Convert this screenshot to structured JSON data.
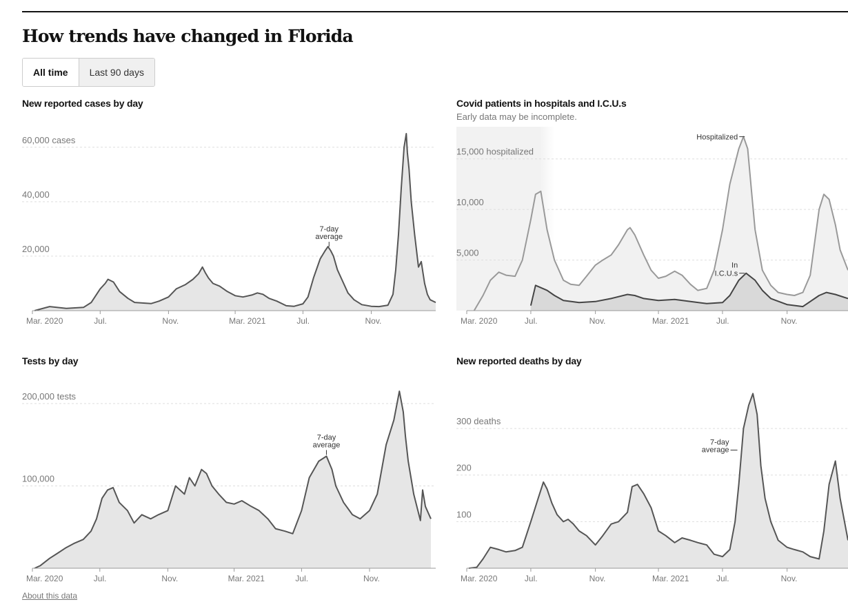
{
  "page": {
    "title": "How trends have changed in Florida",
    "toggle": {
      "all_time": "All time",
      "last_90": "Last 90 days"
    },
    "about_link": "About this data"
  },
  "chart_data": [
    {
      "id": "cases",
      "type": "area",
      "title": "New reported cases by day",
      "ylim": [
        0,
        65000
      ],
      "yticks": [
        {
          "value": 20000,
          "label": "20,000"
        },
        {
          "value": 40000,
          "label": "40,000"
        },
        {
          "value": 60000,
          "label": "60,000 cases"
        }
      ],
      "xlim": [
        "2020-03-01",
        "2022-02-25"
      ],
      "xticks": [
        {
          "date": "2020-03-01",
          "label": "Mar. 2020"
        },
        {
          "date": "2020-07-01",
          "label": "Jul."
        },
        {
          "date": "2020-11-01",
          "label": "Nov."
        },
        {
          "date": "2021-03-01",
          "label": "Mar. 2021"
        },
        {
          "date": "2021-07-01",
          "label": "Jul."
        },
        {
          "date": "2021-11-01",
          "label": "Nov."
        }
      ],
      "annotation": {
        "lines": [
          "7-day",
          "average"
        ],
        "date": "2021-08-17",
        "value": 23000
      },
      "series": [
        {
          "x": [
            "2020-03-05",
            "2020-04-01",
            "2020-05-01",
            "2020-06-01",
            "2020-06-15",
            "2020-07-01",
            "2020-07-10",
            "2020-07-15",
            "2020-07-25",
            "2020-08-05",
            "2020-08-20",
            "2020-09-01",
            "2020-09-15",
            "2020-10-01",
            "2020-10-15",
            "2020-11-01",
            "2020-11-15",
            "2020-12-01",
            "2020-12-15",
            "2020-12-25",
            "2021-01-01",
            "2021-01-06",
            "2021-01-12",
            "2021-01-20",
            "2021-02-01",
            "2021-02-15",
            "2021-03-01",
            "2021-03-15",
            "2021-04-01",
            "2021-04-10",
            "2021-04-20",
            "2021-05-01",
            "2021-05-15",
            "2021-06-01",
            "2021-06-15",
            "2021-07-01",
            "2021-07-10",
            "2021-07-20",
            "2021-08-01",
            "2021-08-10",
            "2021-08-15",
            "2021-08-20",
            "2021-08-25",
            "2021-09-01",
            "2021-09-10",
            "2021-09-20",
            "2021-10-01",
            "2021-10-15",
            "2021-11-01",
            "2021-11-15",
            "2021-12-01",
            "2021-12-10",
            "2021-12-15",
            "2021-12-20",
            "2021-12-25",
            "2021-12-30",
            "2022-01-03",
            "2022-01-05",
            "2022-01-08",
            "2022-01-12",
            "2022-01-18",
            "2022-01-25",
            "2022-01-30",
            "2022-02-05",
            "2022-02-10",
            "2022-02-15",
            "2022-02-25"
          ],
          "values": [
            0,
            1500,
            800,
            1200,
            3000,
            8000,
            10000,
            11500,
            10500,
            7000,
            4500,
            3000,
            2800,
            2600,
            3500,
            5000,
            8000,
            9500,
            11500,
            13500,
            16000,
            14000,
            12000,
            10000,
            9000,
            7000,
            5500,
            5000,
            5800,
            6500,
            6000,
            4500,
            3500,
            1800,
            1600,
            2500,
            5000,
            12000,
            19000,
            22000,
            23500,
            22000,
            20000,
            15000,
            11000,
            6500,
            4000,
            2200,
            1600,
            1500,
            2000,
            6000,
            15000,
            28000,
            45000,
            60000,
            65000,
            58000,
            52000,
            40000,
            28000,
            16000,
            18000,
            10000,
            6000,
            4000,
            3000
          ]
        }
      ]
    },
    {
      "id": "hospital",
      "type": "area",
      "title": "Covid patients in hospitals and I.C.U.s",
      "subtitle": "Early data may be incomplete.",
      "ylim": [
        0,
        17500
      ],
      "yticks": [
        {
          "value": 5000,
          "label": "5,000"
        },
        {
          "value": 10000,
          "label": "10,000"
        },
        {
          "value": 15000,
          "label": "15,000 hospitalized"
        }
      ],
      "xlim": [
        "2020-03-01",
        "2022-02-25"
      ],
      "xticks": [
        {
          "date": "2020-03-01",
          "label": "Mar. 2020"
        },
        {
          "date": "2020-07-01",
          "label": "Jul."
        },
        {
          "date": "2020-11-01",
          "label": "Nov."
        },
        {
          "date": "2021-03-01",
          "label": "Mar. 2021"
        },
        {
          "date": "2021-07-01",
          "label": "Jul."
        },
        {
          "date": "2021-11-01",
          "label": "Nov."
        }
      ],
      "shade_until": "2020-08-15",
      "labels": [
        {
          "lines": [
            "Hospitalized"
          ],
          "date": "2021-08-15",
          "value": 17200
        },
        {
          "lines": [
            "In",
            "I.C.U.s"
          ],
          "date": "2021-08-15",
          "value": 3700
        }
      ],
      "series": [
        {
          "name": "Hospitalized",
          "x": [
            "2020-03-15",
            "2020-04-01",
            "2020-04-15",
            "2020-05-01",
            "2020-05-15",
            "2020-06-01",
            "2020-06-15",
            "2020-07-01",
            "2020-07-10",
            "2020-07-20",
            "2020-08-01",
            "2020-08-15",
            "2020-09-01",
            "2020-09-15",
            "2020-10-01",
            "2020-10-15",
            "2020-11-01",
            "2020-11-15",
            "2020-12-01",
            "2020-12-15",
            "2021-01-01",
            "2021-01-06",
            "2021-01-15",
            "2021-02-01",
            "2021-02-15",
            "2021-03-01",
            "2021-03-15",
            "2021-04-01",
            "2021-04-15",
            "2021-05-01",
            "2021-05-15",
            "2021-06-01",
            "2021-06-15",
            "2021-07-01",
            "2021-07-15",
            "2021-08-01",
            "2021-08-10",
            "2021-08-18",
            "2021-08-25",
            "2021-09-01",
            "2021-09-15",
            "2021-10-01",
            "2021-10-15",
            "2021-11-01",
            "2021-11-15",
            "2021-12-01",
            "2021-12-15",
            "2022-01-01",
            "2022-01-10",
            "2022-01-20",
            "2022-02-01",
            "2022-02-10",
            "2022-02-25"
          ],
          "values": [
            0,
            1500,
            3000,
            3800,
            3500,
            3400,
            5000,
            9000,
            11500,
            11800,
            8000,
            5000,
            3000,
            2600,
            2500,
            3400,
            4500,
            5000,
            5500,
            6500,
            8000,
            8200,
            7500,
            5500,
            4000,
            3200,
            3400,
            3900,
            3500,
            2600,
            2000,
            2200,
            4000,
            8000,
            12500,
            16000,
            17200,
            16000,
            12000,
            8000,
            4000,
            2500,
            1800,
            1600,
            1500,
            1800,
            3500,
            10000,
            11500,
            11000,
            8500,
            6000,
            4000
          ]
        },
        {
          "name": "In I.C.U.s",
          "x": [
            "2020-07-01",
            "2020-07-10",
            "2020-08-01",
            "2020-08-15",
            "2020-09-01",
            "2020-10-01",
            "2020-11-01",
            "2020-12-01",
            "2021-01-01",
            "2021-01-15",
            "2021-02-01",
            "2021-03-01",
            "2021-04-01",
            "2021-05-01",
            "2021-06-01",
            "2021-07-01",
            "2021-07-15",
            "2021-08-01",
            "2021-08-15",
            "2021-09-01",
            "2021-09-15",
            "2021-10-01",
            "2021-11-01",
            "2021-12-01",
            "2022-01-01",
            "2022-01-15",
            "2022-02-01",
            "2022-02-25"
          ],
          "values": [
            500,
            2500,
            2000,
            1500,
            1000,
            800,
            900,
            1200,
            1600,
            1500,
            1200,
            1000,
            1100,
            900,
            700,
            800,
            1500,
            3000,
            3700,
            3000,
            2000,
            1200,
            600,
            400,
            1500,
            1800,
            1600,
            1200
          ]
        }
      ]
    },
    {
      "id": "tests",
      "type": "area",
      "title": "Tests by day",
      "ylim": [
        0,
        215000
      ],
      "yticks": [
        {
          "value": 100000,
          "label": "100,000"
        },
        {
          "value": 200000,
          "label": "200,000 tests"
        }
      ],
      "xlim": [
        "2020-03-01",
        "2022-02-25"
      ],
      "xticks": [
        {
          "date": "2020-03-01",
          "label": "Mar. 2020"
        },
        {
          "date": "2020-07-01",
          "label": "Jul."
        },
        {
          "date": "2020-11-01",
          "label": "Nov."
        },
        {
          "date": "2021-03-01",
          "label": "Mar. 2021"
        },
        {
          "date": "2021-07-01",
          "label": "Jul."
        },
        {
          "date": "2021-11-01",
          "label": "Nov."
        }
      ],
      "annotation": {
        "lines": [
          "7-day",
          "average"
        ],
        "date": "2021-08-15",
        "value": 136000
      },
      "series": [
        {
          "x": [
            "2020-03-05",
            "2020-03-15",
            "2020-04-01",
            "2020-04-15",
            "2020-05-01",
            "2020-05-15",
            "2020-06-01",
            "2020-06-15",
            "2020-06-25",
            "2020-07-05",
            "2020-07-15",
            "2020-07-25",
            "2020-08-05",
            "2020-08-20",
            "2020-09-01",
            "2020-09-15",
            "2020-10-01",
            "2020-10-15",
            "2020-11-01",
            "2020-11-15",
            "2020-12-01",
            "2020-12-10",
            "2020-12-20",
            "2021-01-01",
            "2021-01-10",
            "2021-01-20",
            "2021-02-01",
            "2021-02-15",
            "2021-03-01",
            "2021-03-15",
            "2021-04-01",
            "2021-04-15",
            "2021-05-01",
            "2021-05-15",
            "2021-06-01",
            "2021-06-15",
            "2021-07-01",
            "2021-07-15",
            "2021-08-01",
            "2021-08-15",
            "2021-08-25",
            "2021-09-01",
            "2021-09-15",
            "2021-10-01",
            "2021-10-15",
            "2021-11-01",
            "2021-11-15",
            "2021-12-01",
            "2021-12-15",
            "2021-12-25",
            "2022-01-01",
            "2022-01-05",
            "2022-01-10",
            "2022-01-20",
            "2022-02-01",
            "2022-02-05",
            "2022-02-10",
            "2022-02-20"
          ],
          "values": [
            0,
            3000,
            12000,
            18000,
            25000,
            30000,
            35000,
            45000,
            60000,
            85000,
            95000,
            98000,
            80000,
            70000,
            55000,
            65000,
            60000,
            65000,
            70000,
            100000,
            90000,
            110000,
            100000,
            120000,
            115000,
            100000,
            90000,
            80000,
            78000,
            82000,
            75000,
            70000,
            60000,
            48000,
            45000,
            42000,
            70000,
            110000,
            130000,
            136000,
            120000,
            100000,
            80000,
            65000,
            60000,
            70000,
            90000,
            150000,
            180000,
            215000,
            190000,
            160000,
            130000,
            90000,
            58000,
            95000,
            75000,
            60000
          ]
        }
      ]
    },
    {
      "id": "deaths",
      "type": "area",
      "title": "New reported deaths by day",
      "ylim": [
        0,
        380
      ],
      "yticks": [
        {
          "value": 100,
          "label": "100"
        },
        {
          "value": 200,
          "label": "200"
        },
        {
          "value": 300,
          "label": "300 deaths"
        }
      ],
      "xlim": [
        "2020-03-01",
        "2022-02-25"
      ],
      "xticks": [
        {
          "date": "2020-03-01",
          "label": "Mar. 2020"
        },
        {
          "date": "2020-07-01",
          "label": "Jul."
        },
        {
          "date": "2020-11-01",
          "label": "Nov."
        },
        {
          "date": "2021-03-01",
          "label": "Mar. 2021"
        },
        {
          "date": "2021-07-01",
          "label": "Jul."
        },
        {
          "date": "2021-11-01",
          "label": "Nov."
        }
      ],
      "annotation": {
        "lines": [
          "7-day",
          "average"
        ],
        "date": "2021-08-01",
        "value": 230
      },
      "series": [
        {
          "x": [
            "2020-03-05",
            "2020-03-20",
            "2020-04-01",
            "2020-04-15",
            "2020-05-01",
            "2020-05-15",
            "2020-06-01",
            "2020-06-15",
            "2020-07-01",
            "2020-07-15",
            "2020-07-25",
            "2020-08-01",
            "2020-08-10",
            "2020-08-20",
            "2020-09-01",
            "2020-09-10",
            "2020-09-20",
            "2020-10-01",
            "2020-10-15",
            "2020-11-01",
            "2020-11-15",
            "2020-12-01",
            "2020-12-15",
            "2021-01-01",
            "2021-01-10",
            "2021-01-20",
            "2021-02-01",
            "2021-02-15",
            "2021-03-01",
            "2021-03-15",
            "2021-04-01",
            "2021-04-15",
            "2021-05-01",
            "2021-05-15",
            "2021-06-01",
            "2021-06-15",
            "2021-07-01",
            "2021-07-15",
            "2021-07-25",
            "2021-08-01",
            "2021-08-10",
            "2021-08-20",
            "2021-08-28",
            "2021-09-05",
            "2021-09-12",
            "2021-09-20",
            "2021-10-01",
            "2021-10-15",
            "2021-11-01",
            "2021-11-15",
            "2021-12-01",
            "2021-12-15",
            "2022-01-01",
            "2022-01-10",
            "2022-01-20",
            "2022-02-01",
            "2022-02-10",
            "2022-02-25"
          ],
          "values": [
            0,
            2,
            20,
            45,
            40,
            35,
            38,
            45,
            100,
            150,
            185,
            170,
            140,
            115,
            100,
            105,
            95,
            80,
            70,
            50,
            70,
            95,
            100,
            120,
            175,
            180,
            160,
            130,
            80,
            70,
            55,
            65,
            60,
            55,
            50,
            30,
            25,
            40,
            100,
            180,
            300,
            350,
            375,
            330,
            220,
            150,
            100,
            60,
            45,
            40,
            35,
            25,
            20,
            80,
            180,
            230,
            150,
            60
          ]
        }
      ]
    }
  ]
}
